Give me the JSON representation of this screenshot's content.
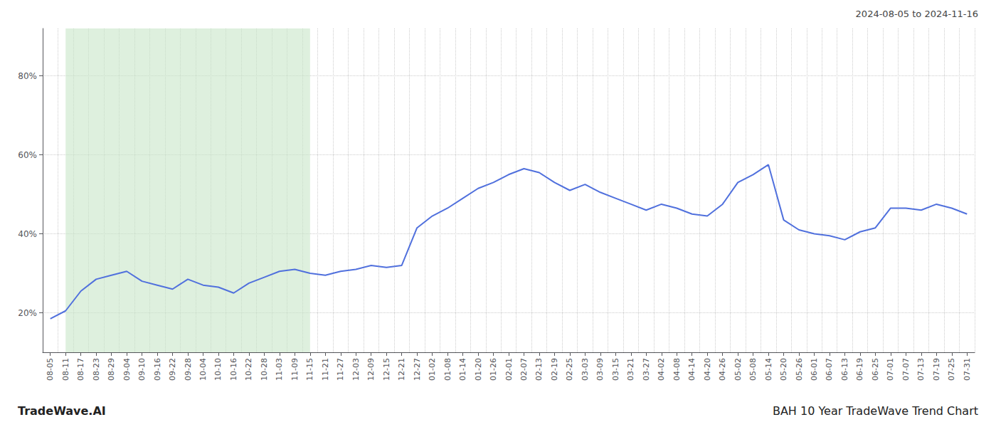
{
  "chart_data": {
    "type": "line",
    "title": "BAH 10 Year TradeWave Trend Chart",
    "subtitle": "2024-08-05 to 2024-11-16",
    "annotations": [
      "TradeWave.AI"
    ],
    "categories": [
      "08-05",
      "08-11",
      "08-17",
      "08-23",
      "08-29",
      "09-04",
      "09-10",
      "09-16",
      "09-22",
      "09-28",
      "10-04",
      "10-10",
      "10-16",
      "10-22",
      "10-28",
      "11-03",
      "11-09",
      "11-15",
      "11-21",
      "11-27",
      "12-03",
      "12-09",
      "12-15",
      "12-21",
      "12-27",
      "01-02",
      "01-08",
      "01-14",
      "01-20",
      "01-26",
      "02-01",
      "02-07",
      "02-13",
      "02-19",
      "02-25",
      "03-03",
      "03-09",
      "03-15",
      "03-21",
      "03-27",
      "04-02",
      "04-08",
      "04-14",
      "04-20",
      "04-26",
      "05-02",
      "05-08",
      "05-14",
      "05-20",
      "05-26",
      "06-01",
      "06-07",
      "06-13",
      "06-19",
      "06-25",
      "07-01",
      "07-07",
      "07-13",
      "07-19",
      "07-25",
      "07-31"
    ],
    "values": [
      18.5,
      20.5,
      25.5,
      28.5,
      29.5,
      30.5,
      28.0,
      27.0,
      26.0,
      28.5,
      27.0,
      26.5,
      25.0,
      27.5,
      29.0,
      30.5,
      31.0,
      30.0,
      29.5,
      30.5,
      31.0,
      32.0,
      31.5,
      32.0,
      41.5,
      44.5,
      46.5,
      49.0,
      51.5,
      53.0,
      55.0,
      56.5,
      55.5,
      53.0,
      51.0,
      52.5,
      50.5,
      49.0,
      47.5,
      46.0,
      47.5,
      46.5,
      45.0,
      44.5,
      47.5,
      53.0,
      55.0,
      57.5,
      43.5,
      41.0,
      40.0,
      39.5,
      38.5,
      40.5,
      41.5,
      46.5,
      46.5,
      46.0,
      47.5,
      46.5,
      45.0
    ],
    "shaded_region": {
      "start": "08-11",
      "end": "11-15",
      "color": "#c8e6c8"
    },
    "ylim": [
      10,
      92
    ],
    "yticks": [
      {
        "value": 20,
        "label": "20%"
      },
      {
        "value": 40,
        "label": "40%"
      },
      {
        "value": 60,
        "label": "60%"
      },
      {
        "value": 80,
        "label": "80%"
      }
    ],
    "grid": true
  }
}
